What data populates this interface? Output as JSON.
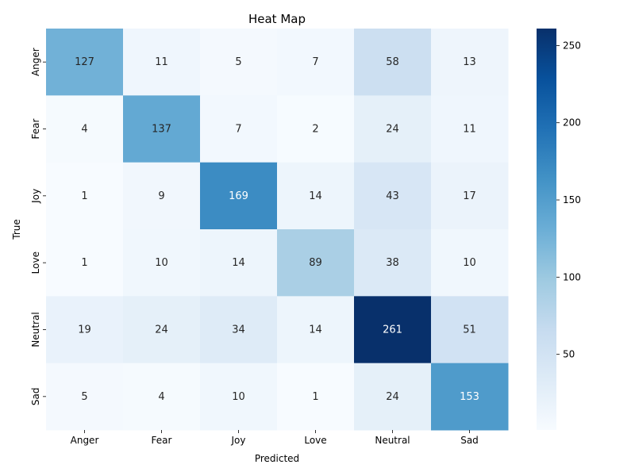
{
  "chart_data": {
    "type": "heatmap",
    "title": "Heat Map",
    "xlabel": "Predicted",
    "ylabel": "True",
    "x_categories": [
      "Anger",
      "Fear",
      "Joy",
      "Love",
      "Neutral",
      "Sad"
    ],
    "y_categories": [
      "Anger",
      "Fear",
      "Joy",
      "Love",
      "Neutral",
      "Sad"
    ],
    "values": [
      [
        127,
        11,
        5,
        7,
        58,
        13
      ],
      [
        4,
        137,
        7,
        2,
        24,
        11
      ],
      [
        1,
        9,
        169,
        14,
        43,
        17
      ],
      [
        1,
        10,
        14,
        89,
        38,
        10
      ],
      [
        19,
        24,
        34,
        14,
        261,
        51
      ],
      [
        5,
        4,
        10,
        1,
        24,
        153
      ]
    ],
    "colorbar": {
      "min": 1,
      "max": 261,
      "ticks": [
        50,
        100,
        150,
        200,
        250
      ],
      "colormap": "Blues"
    }
  }
}
